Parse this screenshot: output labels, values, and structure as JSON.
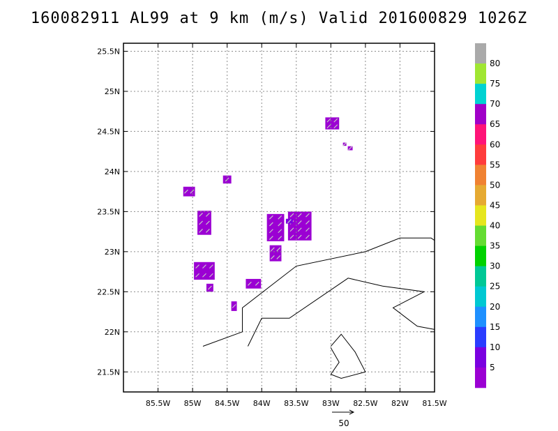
{
  "chart_data": {
    "type": "heatmap",
    "title": "160082911 AL99 at 9 km (m/s) Valid 201600829 1026Z",
    "xlabel": "",
    "ylabel": "",
    "xlim": [
      -86.0,
      -81.5
    ],
    "ylim": [
      21.25,
      25.6
    ],
    "xticks": [
      {
        "value": -85.5,
        "label": "85.5W"
      },
      {
        "value": -85.0,
        "label": "85W"
      },
      {
        "value": -84.5,
        "label": "84.5W"
      },
      {
        "value": -84.0,
        "label": "84W"
      },
      {
        "value": -83.5,
        "label": "83.5W"
      },
      {
        "value": -83.0,
        "label": "83W"
      },
      {
        "value": -82.5,
        "label": "82.5W"
      },
      {
        "value": -82.0,
        "label": "82W"
      },
      {
        "value": -81.5,
        "label": "81.5W"
      }
    ],
    "yticks": [
      {
        "value": 21.5,
        "label": "21.5N"
      },
      {
        "value": 22.0,
        "label": "22N"
      },
      {
        "value": 22.5,
        "label": "22.5N"
      },
      {
        "value": 23.0,
        "label": "23N"
      },
      {
        "value": 23.5,
        "label": "23.5N"
      },
      {
        "value": 24.0,
        "label": "24N"
      },
      {
        "value": 24.5,
        "label": "24.5N"
      },
      {
        "value": 25.0,
        "label": "25N"
      },
      {
        "value": 25.5,
        "label": "25.5N"
      }
    ],
    "grid": true,
    "colorbar": {
      "labels": [
        "5",
        "10",
        "15",
        "20",
        "25",
        "30",
        "35",
        "40",
        "45",
        "50",
        "55",
        "60",
        "65",
        "70",
        "75",
        "80"
      ],
      "colors": [
        "#9b00d3",
        "#7a00e0",
        "#2a3cff",
        "#1e90ff",
        "#00c8d2",
        "#00c896",
        "#00d200",
        "#64dc32",
        "#e6e61e",
        "#e6aa32",
        "#f08232",
        "#ff3c3c",
        "#ff1478",
        "#a000c8",
        "#00d2d2",
        "#a0e632",
        "#aaaaaa"
      ]
    },
    "vector_reference": {
      "label": "50"
    },
    "wind_cells": [
      {
        "lon": -85.05,
        "lat": 23.75,
        "w": 0.17,
        "h": 0.12,
        "speed": 5
      },
      {
        "lon": -84.5,
        "lat": 23.9,
        "w": 0.12,
        "h": 0.1,
        "speed": 5
      },
      {
        "lon": -84.83,
        "lat": 23.36,
        "w": 0.2,
        "h": 0.3,
        "speed": 5
      },
      {
        "lon": -84.83,
        "lat": 22.76,
        "w": 0.3,
        "h": 0.22,
        "speed": 5
      },
      {
        "lon": -84.75,
        "lat": 22.55,
        "w": 0.1,
        "h": 0.1,
        "speed": 5
      },
      {
        "lon": -84.4,
        "lat": 22.32,
        "w": 0.08,
        "h": 0.12,
        "speed": 5
      },
      {
        "lon": -84.12,
        "lat": 22.6,
        "w": 0.22,
        "h": 0.12,
        "speed": 5
      },
      {
        "lon": -83.8,
        "lat": 23.3,
        "w": 0.25,
        "h": 0.34,
        "speed": 5
      },
      {
        "lon": -83.8,
        "lat": 22.98,
        "w": 0.17,
        "h": 0.2,
        "speed": 5
      },
      {
        "lon": -83.45,
        "lat": 23.32,
        "w": 0.34,
        "h": 0.36,
        "speed": 5
      },
      {
        "lon": -83.6,
        "lat": 23.38,
        "w": 0.1,
        "h": 0.06,
        "speed": 10
      },
      {
        "lon": -82.98,
        "lat": 24.6,
        "w": 0.2,
        "h": 0.15,
        "speed": 5
      },
      {
        "lon": -82.72,
        "lat": 24.29,
        "w": 0.07,
        "h": 0.05,
        "speed": 5
      },
      {
        "lon": -82.8,
        "lat": 24.34,
        "w": 0.05,
        "h": 0.04,
        "speed": 5
      }
    ],
    "coastlines": [
      [
        [
          -84.85,
          21.82
        ],
        [
          -84.28,
          22.0
        ],
        [
          -84.28,
          22.3
        ],
        [
          -83.5,
          22.82
        ],
        [
          -82.5,
          23.0
        ],
        [
          -82.0,
          23.17
        ],
        [
          -81.55,
          23.17
        ],
        [
          -81.5,
          23.14
        ]
      ],
      [
        [
          -84.2,
          21.82
        ],
        [
          -84.0,
          22.17
        ],
        [
          -83.6,
          22.17
        ],
        [
          -82.75,
          22.67
        ],
        [
          -82.25,
          22.57
        ],
        [
          -81.65,
          22.5
        ],
        [
          -82.1,
          22.3
        ],
        [
          -81.75,
          22.07
        ],
        [
          -81.5,
          22.03
        ]
      ],
      [
        [
          -83.0,
          21.82
        ],
        [
          -82.85,
          21.97
        ],
        [
          -82.65,
          21.75
        ],
        [
          -82.5,
          21.5
        ],
        [
          -82.85,
          21.42
        ],
        [
          -83.0,
          21.47
        ],
        [
          -82.88,
          21.62
        ],
        [
          -83.0,
          21.8
        ]
      ]
    ]
  }
}
